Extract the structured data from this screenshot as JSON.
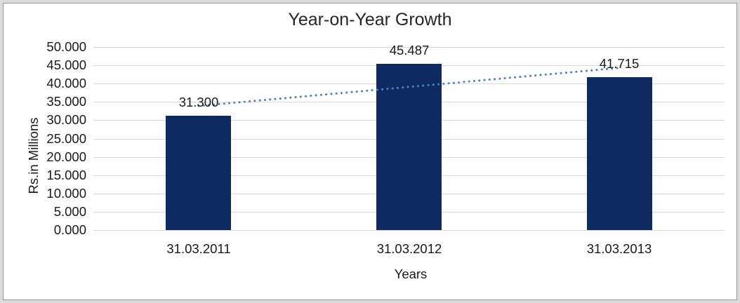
{
  "chart_data": {
    "type": "bar",
    "title": "Year-on-Year Growth",
    "xlabel": "Years",
    "ylabel": "Rs.in Millions",
    "categories": [
      "31.03.2011",
      "31.03.2012",
      "31.03.2013"
    ],
    "values": [
      31.3,
      45.487,
      41.715
    ],
    "data_labels": [
      "31.300",
      "45.487",
      "41.715"
    ],
    "ylim": [
      0,
      50
    ],
    "ytick_step": 5,
    "ytick_labels": [
      "0.000",
      "5.000",
      "10.000",
      "15.000",
      "20.000",
      "25.000",
      "30.000",
      "35.000",
      "40.000",
      "45.000",
      "50.000"
    ],
    "grid": true,
    "legend": "none",
    "trendline": {
      "type": "linear",
      "style": "dotted",
      "start_value": 33.9,
      "end_value": 44.3
    },
    "colors": {
      "bar": "#0E2A63",
      "trendline": "#4F81BD",
      "gridline": "#D9D9D9",
      "text": "#1A1A1A",
      "title_text": "#262626",
      "frame_outer": "#DCDCDC",
      "frame_inner_line": "#8F949C"
    }
  }
}
